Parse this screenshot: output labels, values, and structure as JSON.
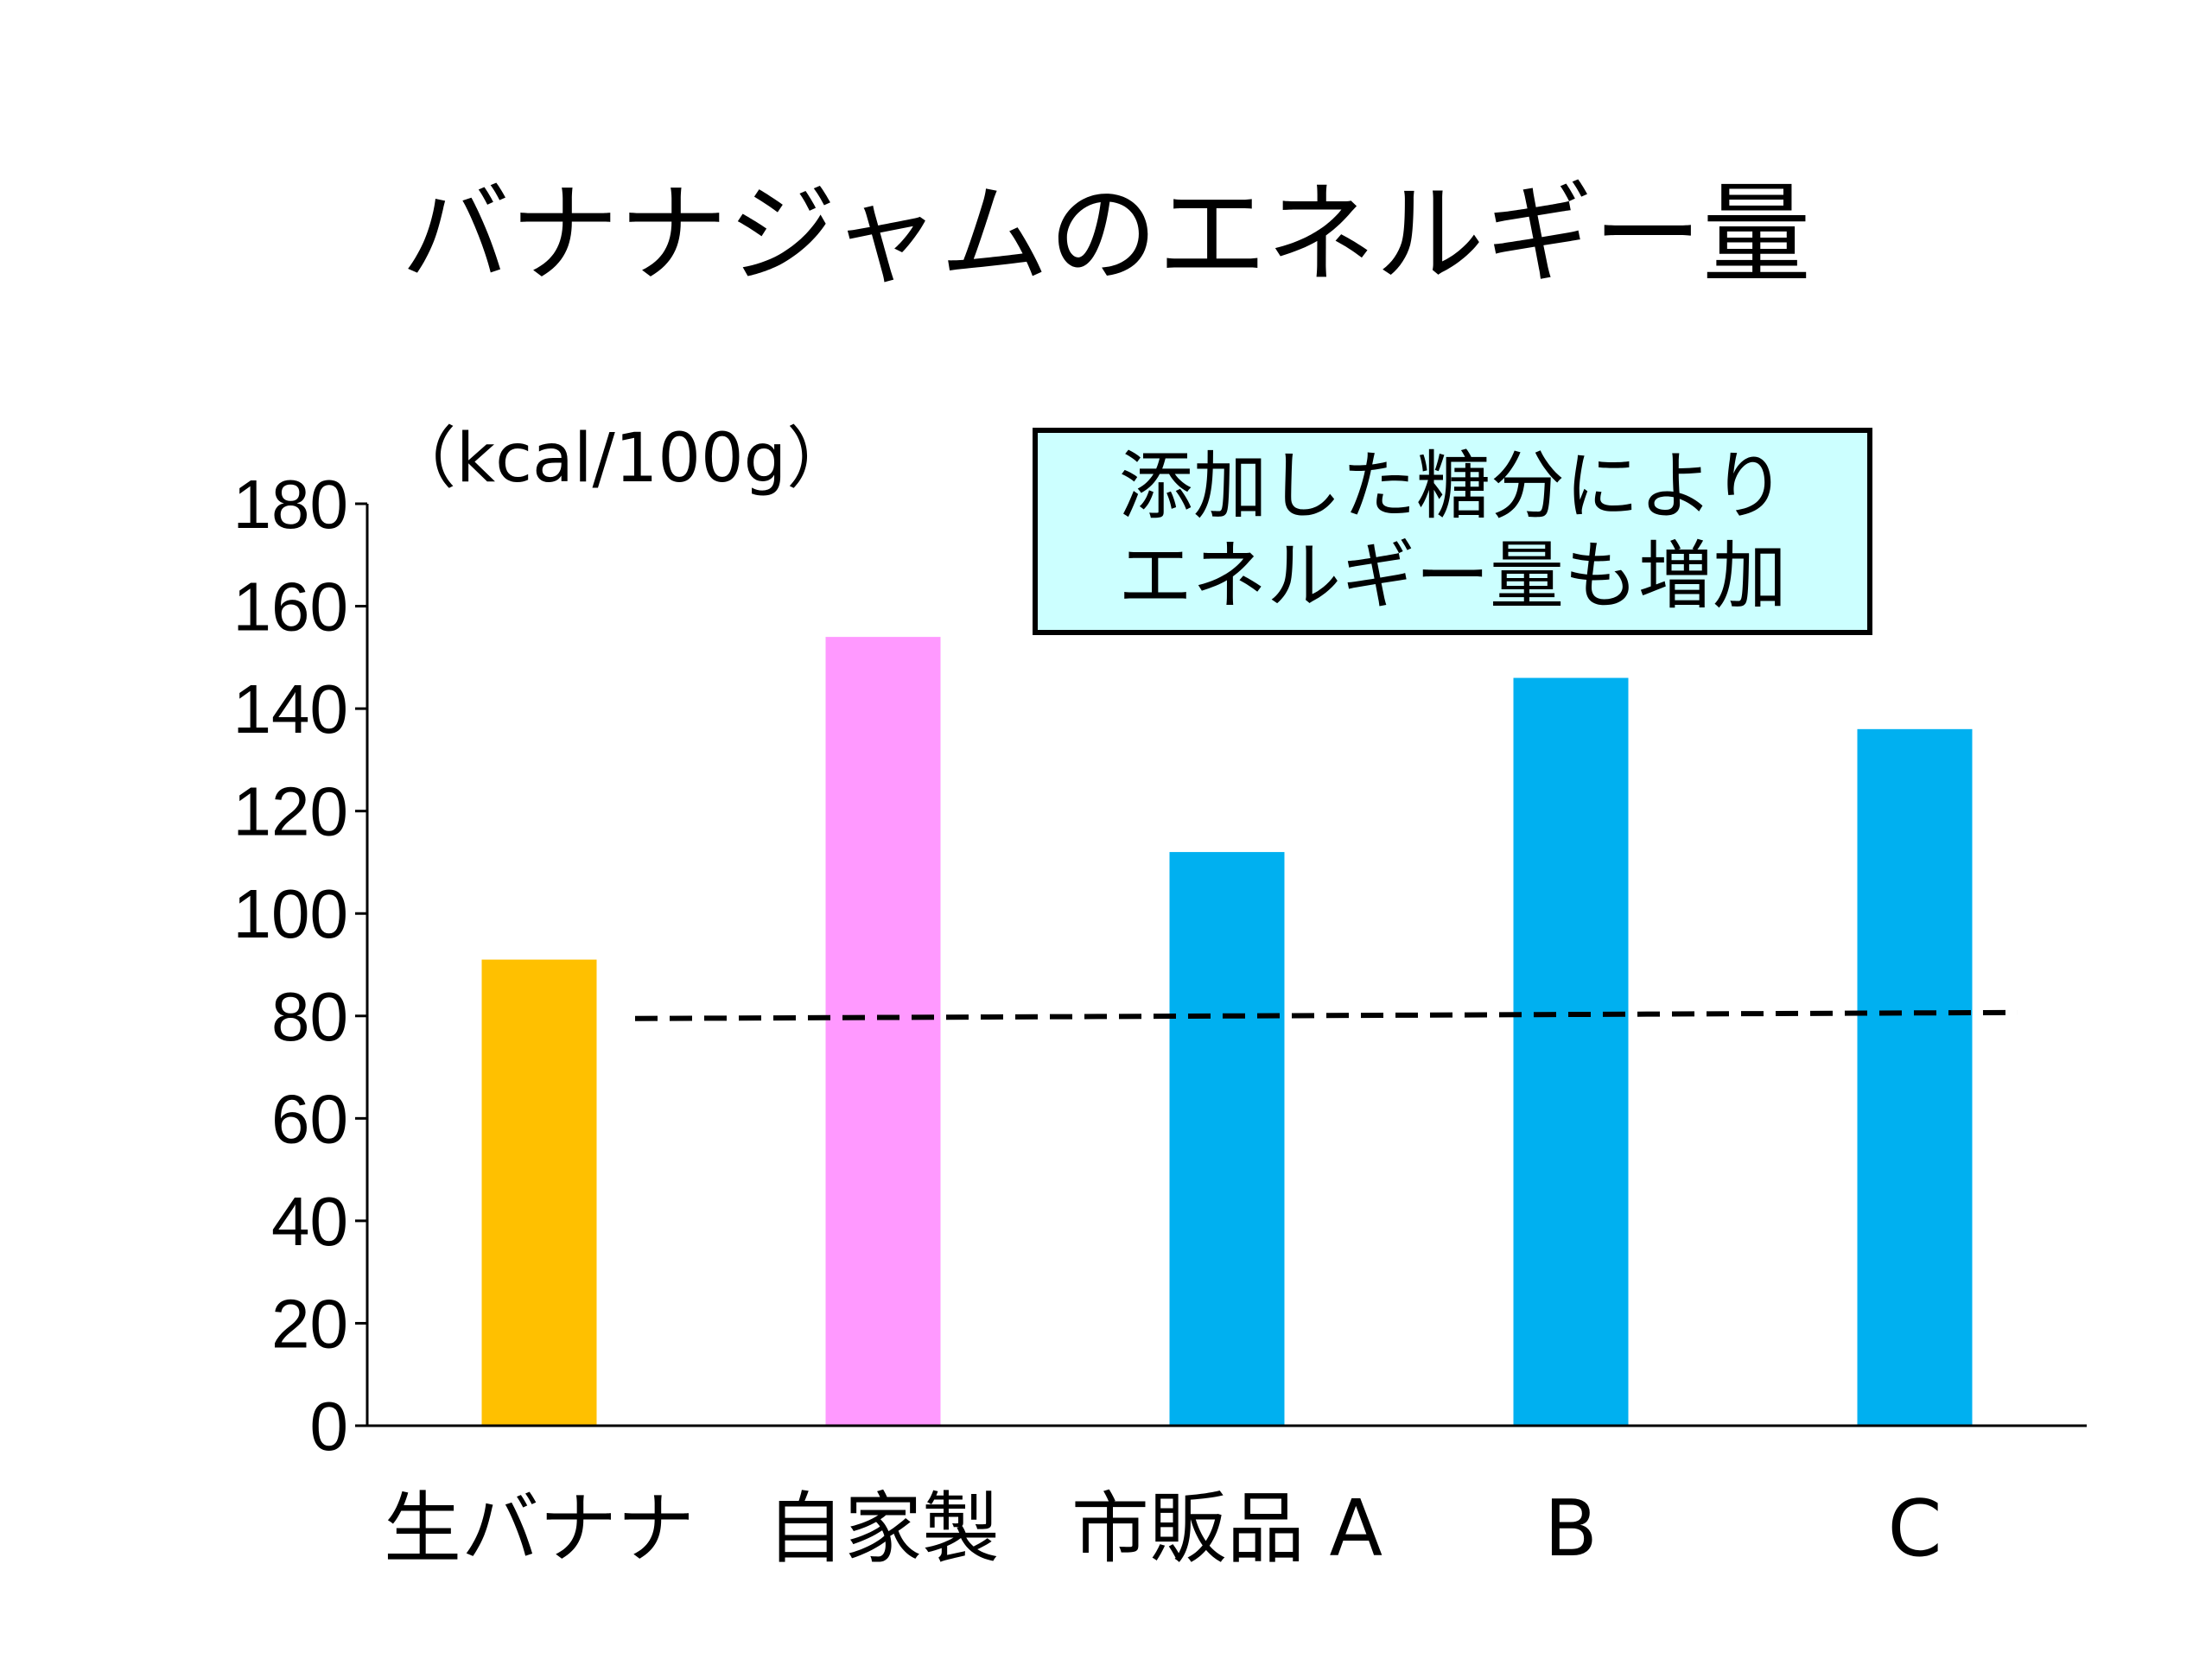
{
  "slide": {
    "title": "バナナジャムのエネルギー量",
    "unit_label": "（kcal/100g）",
    "callout": {
      "line1": "添加した糖分により",
      "line2": "エネルギー量も増加"
    }
  },
  "chart_data": {
    "type": "bar",
    "title": "バナナジャムのエネルギー量",
    "ylabel": "（kcal/100g）",
    "categories": [
      "生バナナ",
      "自家製",
      "市販品 A",
      "B",
      "C"
    ],
    "values": [
      91,
      154,
      112,
      146,
      136
    ],
    "bar_colors": [
      "#FFC000",
      "#FF99FF",
      "#00B0F0",
      "#00B0F0",
      "#00B0F0"
    ],
    "ylim": [
      0,
      180
    ],
    "yticks": [
      0,
      20,
      40,
      60,
      80,
      100,
      120,
      140,
      160,
      180
    ],
    "reference_line": {
      "value": 80,
      "style": "dashed",
      "color": "#000000"
    },
    "grid": false,
    "legend": "none"
  }
}
